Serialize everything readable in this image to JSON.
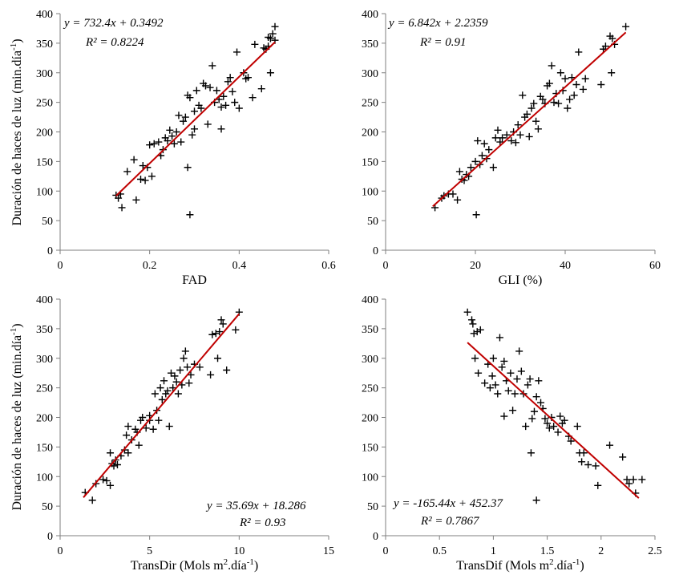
{
  "chart_data": [
    {
      "type": "scatter",
      "id": "fad",
      "xlabel": "FAD",
      "ylabel": "Duración de haces de luz (min.día",
      "ylabel_sup": "-1",
      "ylabel_end": ")",
      "xlim": [
        0,
        0.6
      ],
      "ylim": [
        0,
        400
      ],
      "xticks": [
        0,
        0.2,
        0.4,
        0.6
      ],
      "xtick_labels": [
        "0",
        "0.2",
        "0.4",
        "0.6"
      ],
      "yticks": [
        0,
        50,
        100,
        150,
        200,
        250,
        300,
        350,
        400
      ],
      "trend": {
        "slope": 732.4,
        "intercept": 0.3492,
        "x_range": [
          0.125,
          0.48
        ]
      },
      "equation": "y = 732.4x + 0.3492",
      "r2": "R² = 0.8224",
      "points": [
        [
          0.125,
          93
        ],
        [
          0.13,
          88
        ],
        [
          0.135,
          95
        ],
        [
          0.138,
          72
        ],
        [
          0.15,
          133
        ],
        [
          0.165,
          153
        ],
        [
          0.17,
          85
        ],
        [
          0.18,
          120
        ],
        [
          0.185,
          143
        ],
        [
          0.19,
          118
        ],
        [
          0.195,
          140
        ],
        [
          0.2,
          178
        ],
        [
          0.205,
          125
        ],
        [
          0.21,
          180
        ],
        [
          0.22,
          183
        ],
        [
          0.225,
          160
        ],
        [
          0.23,
          170
        ],
        [
          0.235,
          190
        ],
        [
          0.24,
          185
        ],
        [
          0.245,
          203
        ],
        [
          0.25,
          193
        ],
        [
          0.255,
          180
        ],
        [
          0.26,
          200
        ],
        [
          0.265,
          228
        ],
        [
          0.27,
          183
        ],
        [
          0.275,
          218
        ],
        [
          0.28,
          225
        ],
        [
          0.285,
          262
        ],
        [
          0.285,
          140
        ],
        [
          0.29,
          258
        ],
        [
          0.29,
          60
        ],
        [
          0.295,
          195
        ],
        [
          0.3,
          235
        ],
        [
          0.3,
          205
        ],
        [
          0.305,
          270
        ],
        [
          0.31,
          245
        ],
        [
          0.315,
          240
        ],
        [
          0.32,
          282
        ],
        [
          0.325,
          278
        ],
        [
          0.33,
          213
        ],
        [
          0.335,
          275
        ],
        [
          0.34,
          312
        ],
        [
          0.345,
          250
        ],
        [
          0.35,
          270
        ],
        [
          0.355,
          255
        ],
        [
          0.36,
          242
        ],
        [
          0.36,
          205
        ],
        [
          0.365,
          260
        ],
        [
          0.37,
          245
        ],
        [
          0.375,
          285
        ],
        [
          0.38,
          292
        ],
        [
          0.385,
          268
        ],
        [
          0.39,
          250
        ],
        [
          0.395,
          335
        ],
        [
          0.4,
          240
        ],
        [
          0.41,
          300
        ],
        [
          0.415,
          290
        ],
        [
          0.42,
          292
        ],
        [
          0.43,
          258
        ],
        [
          0.435,
          348
        ],
        [
          0.45,
          273
        ],
        [
          0.455,
          342
        ],
        [
          0.46,
          340
        ],
        [
          0.465,
          360
        ],
        [
          0.47,
          300
        ],
        [
          0.47,
          358
        ],
        [
          0.475,
          366
        ],
        [
          0.48,
          355
        ],
        [
          0.48,
          378
        ],
        [
          0.465,
          345
        ]
      ]
    },
    {
      "type": "scatter",
      "id": "gli",
      "xlabel": "GLI (%)",
      "ylabel": "",
      "xlim": [
        0,
        60
      ],
      "ylim": [
        0,
        400
      ],
      "xticks": [
        0,
        20,
        40,
        60
      ],
      "xtick_labels": [
        "0",
        "20",
        "40",
        "60"
      ],
      "yticks": [
        0,
        50,
        100,
        150,
        200,
        250,
        300,
        350,
        400
      ],
      "trend": {
        "slope": 6.842,
        "intercept": 2.2359,
        "x_range": [
          10.5,
          53.5
        ]
      },
      "equation": "y = 6.842x + 2.2359",
      "r2": "R² = 0.91",
      "points": [
        [
          11,
          72
        ],
        [
          12.5,
          88
        ],
        [
          13,
          92
        ],
        [
          14,
          95
        ],
        [
          15,
          95
        ],
        [
          16,
          85
        ],
        [
          16.5,
          133
        ],
        [
          17,
          120
        ],
        [
          17.5,
          118
        ],
        [
          18,
          128
        ],
        [
          18.5,
          125
        ],
        [
          19,
          140
        ],
        [
          20,
          150
        ],
        [
          20.2,
          60
        ],
        [
          20.5,
          185
        ],
        [
          21,
          145
        ],
        [
          21.5,
          160
        ],
        [
          22,
          180
        ],
        [
          22.5,
          155
        ],
        [
          23,
          170
        ],
        [
          24,
          140
        ],
        [
          24.5,
          190
        ],
        [
          25,
          203
        ],
        [
          25.5,
          183
        ],
        [
          26,
          190
        ],
        [
          27,
          195
        ],
        [
          28,
          185
        ],
        [
          28.5,
          200
        ],
        [
          29,
          182
        ],
        [
          29.5,
          212
        ],
        [
          30,
          195
        ],
        [
          30.5,
          262
        ],
        [
          31,
          225
        ],
        [
          31.5,
          230
        ],
        [
          32,
          192
        ],
        [
          32.5,
          240
        ],
        [
          33,
          248
        ],
        [
          33.5,
          218
        ],
        [
          34,
          205
        ],
        [
          34.5,
          260
        ],
        [
          35,
          255
        ],
        [
          35.5,
          248
        ],
        [
          36,
          278
        ],
        [
          36.5,
          282
        ],
        [
          37,
          312
        ],
        [
          37.5,
          250
        ],
        [
          38,
          265
        ],
        [
          38.5,
          248
        ],
        [
          39,
          300
        ],
        [
          39.5,
          270
        ],
        [
          40,
          290
        ],
        [
          40.5,
          240
        ],
        [
          41,
          255
        ],
        [
          41.5,
          292
        ],
        [
          42,
          262
        ],
        [
          42.5,
          280
        ],
        [
          43,
          335
        ],
        [
          44,
          272
        ],
        [
          44.5,
          290
        ],
        [
          48,
          280
        ],
        [
          48.5,
          340
        ],
        [
          49,
          345
        ],
        [
          50,
          362
        ],
        [
          50.3,
          300
        ],
        [
          50.5,
          358
        ],
        [
          51,
          348
        ],
        [
          53.5,
          378
        ]
      ]
    },
    {
      "type": "scatter",
      "id": "transdir",
      "xlabel": "TransDir (Mols m",
      "xlabel_sup": "2",
      "xlabel_mid": ".día",
      "xlabel_sup2": "-1",
      "xlabel_end": ")",
      "ylabel": "Duración de haces de luz (min.día",
      "ylabel_sup": "-1",
      "ylabel_end": ")",
      "xlim": [
        0,
        15
      ],
      "ylim": [
        0,
        400
      ],
      "xticks": [
        0,
        5,
        10,
        15
      ],
      "xtick_labels": [
        "0",
        "5",
        "10",
        "15"
      ],
      "yticks": [
        0,
        50,
        100,
        150,
        200,
        250,
        300,
        350,
        400
      ],
      "trend": {
        "slope": 35.69,
        "intercept": 18.286,
        "x_range": [
          1.3,
          10.0
        ]
      },
      "equation": "y = 35.69x + 18.286",
      "r2": "R² = 0.93",
      "points": [
        [
          1.4,
          73
        ],
        [
          1.8,
          60
        ],
        [
          2,
          88
        ],
        [
          2.4,
          95
        ],
        [
          2.6,
          93
        ],
        [
          2.8,
          85
        ],
        [
          2.8,
          140
        ],
        [
          2.9,
          122
        ],
        [
          3,
          118
        ],
        [
          3.1,
          128
        ],
        [
          3.2,
          120
        ],
        [
          3.4,
          135
        ],
        [
          3.6,
          145
        ],
        [
          3.7,
          170
        ],
        [
          3.8,
          185
        ],
        [
          3.8,
          140
        ],
        [
          4,
          162
        ],
        [
          4.2,
          180
        ],
        [
          4.3,
          175
        ],
        [
          4.4,
          153
        ],
        [
          4.5,
          195
        ],
        [
          4.6,
          200
        ],
        [
          4.8,
          182
        ],
        [
          5,
          195
        ],
        [
          5,
          203
        ],
        [
          5.2,
          180
        ],
        [
          5.3,
          240
        ],
        [
          5.4,
          212
        ],
        [
          5.5,
          195
        ],
        [
          5.6,
          250
        ],
        [
          5.7,
          230
        ],
        [
          5.8,
          262
        ],
        [
          5.9,
          240
        ],
        [
          6,
          245
        ],
        [
          6.1,
          185
        ],
        [
          6.2,
          275
        ],
        [
          6.3,
          250
        ],
        [
          6.4,
          270
        ],
        [
          6.5,
          260
        ],
        [
          6.6,
          240
        ],
        [
          6.7,
          280
        ],
        [
          6.8,
          255
        ],
        [
          6.9,
          300
        ],
        [
          7,
          312
        ],
        [
          7.1,
          285
        ],
        [
          7.2,
          258
        ],
        [
          7.3,
          272
        ],
        [
          7.5,
          290
        ],
        [
          7.8,
          285
        ],
        [
          8.4,
          272
        ],
        [
          8.5,
          340
        ],
        [
          8.7,
          342
        ],
        [
          8.8,
          300
        ],
        [
          8.9,
          345
        ],
        [
          9,
          365
        ],
        [
          9.1,
          358
        ],
        [
          9.3,
          280
        ],
        [
          9.8,
          348
        ],
        [
          10,
          378
        ]
      ]
    },
    {
      "type": "scatter",
      "id": "transdif",
      "xlabel": "TransDif (Mols m",
      "xlabel_sup": "2",
      "xlabel_mid": ".día",
      "xlabel_sup2": "-1",
      "xlabel_end": ")",
      "ylabel": "",
      "xlim": [
        0,
        2.5
      ],
      "ylim": [
        0,
        400
      ],
      "xticks": [
        0,
        0.5,
        1,
        1.5,
        2,
        2.5
      ],
      "xtick_labels": [
        "0",
        "0.5",
        "1",
        "1.5",
        "2",
        "2.5"
      ],
      "yticks": [
        0,
        50,
        100,
        150,
        200,
        250,
        300,
        350,
        400
      ],
      "trend": {
        "slope": -165.44,
        "intercept": 452.37,
        "x_range": [
          0.76,
          2.35
        ]
      },
      "equation": "y = -165.44x + 452.37",
      "r2": "R² = 0.7867",
      "points": [
        [
          0.76,
          378
        ],
        [
          0.8,
          365
        ],
        [
          0.81,
          358
        ],
        [
          0.82,
          342
        ],
        [
          0.83,
          300
        ],
        [
          0.85,
          345
        ],
        [
          0.86,
          275
        ],
        [
          0.88,
          348
        ],
        [
          0.92,
          258
        ],
        [
          0.95,
          290
        ],
        [
          0.97,
          250
        ],
        [
          0.99,
          270
        ],
        [
          1.0,
          300
        ],
        [
          1.02,
          255
        ],
        [
          1.04,
          240
        ],
        [
          1.06,
          335
        ],
        [
          1.08,
          285
        ],
        [
          1.1,
          295
        ],
        [
          1.1,
          202
        ],
        [
          1.12,
          262
        ],
        [
          1.14,
          245
        ],
        [
          1.16,
          275
        ],
        [
          1.18,
          212
        ],
        [
          1.2,
          240
        ],
        [
          1.22,
          265
        ],
        [
          1.24,
          312
        ],
        [
          1.26,
          278
        ],
        [
          1.28,
          240
        ],
        [
          1.3,
          185
        ],
        [
          1.32,
          255
        ],
        [
          1.34,
          265
        ],
        [
          1.35,
          140
        ],
        [
          1.36,
          198
        ],
        [
          1.38,
          210
        ],
        [
          1.4,
          235
        ],
        [
          1.42,
          262
        ],
        [
          1.44,
          225
        ],
        [
          1.46,
          215
        ],
        [
          1.48,
          198
        ],
        [
          1.5,
          190
        ],
        [
          1.52,
          182
        ],
        [
          1.54,
          200
        ],
        [
          1.56,
          185
        ],
        [
          1.6,
          175
        ],
        [
          1.62,
          202
        ],
        [
          1.64,
          190
        ],
        [
          1.66,
          195
        ],
        [
          1.7,
          168
        ],
        [
          1.72,
          160
        ],
        [
          1.78,
          185
        ],
        [
          1.8,
          140
        ],
        [
          1.82,
          125
        ],
        [
          1.84,
          140
        ],
        [
          1.88,
          120
        ],
        [
          1.95,
          118
        ],
        [
          1.97,
          85
        ],
        [
          2.08,
          153
        ],
        [
          2.2,
          133
        ],
        [
          2.24,
          95
        ],
        [
          2.26,
          88
        ],
        [
          2.3,
          95
        ],
        [
          2.38,
          95
        ],
        [
          2.32,
          72
        ],
        [
          1.4,
          60
        ]
      ]
    }
  ]
}
